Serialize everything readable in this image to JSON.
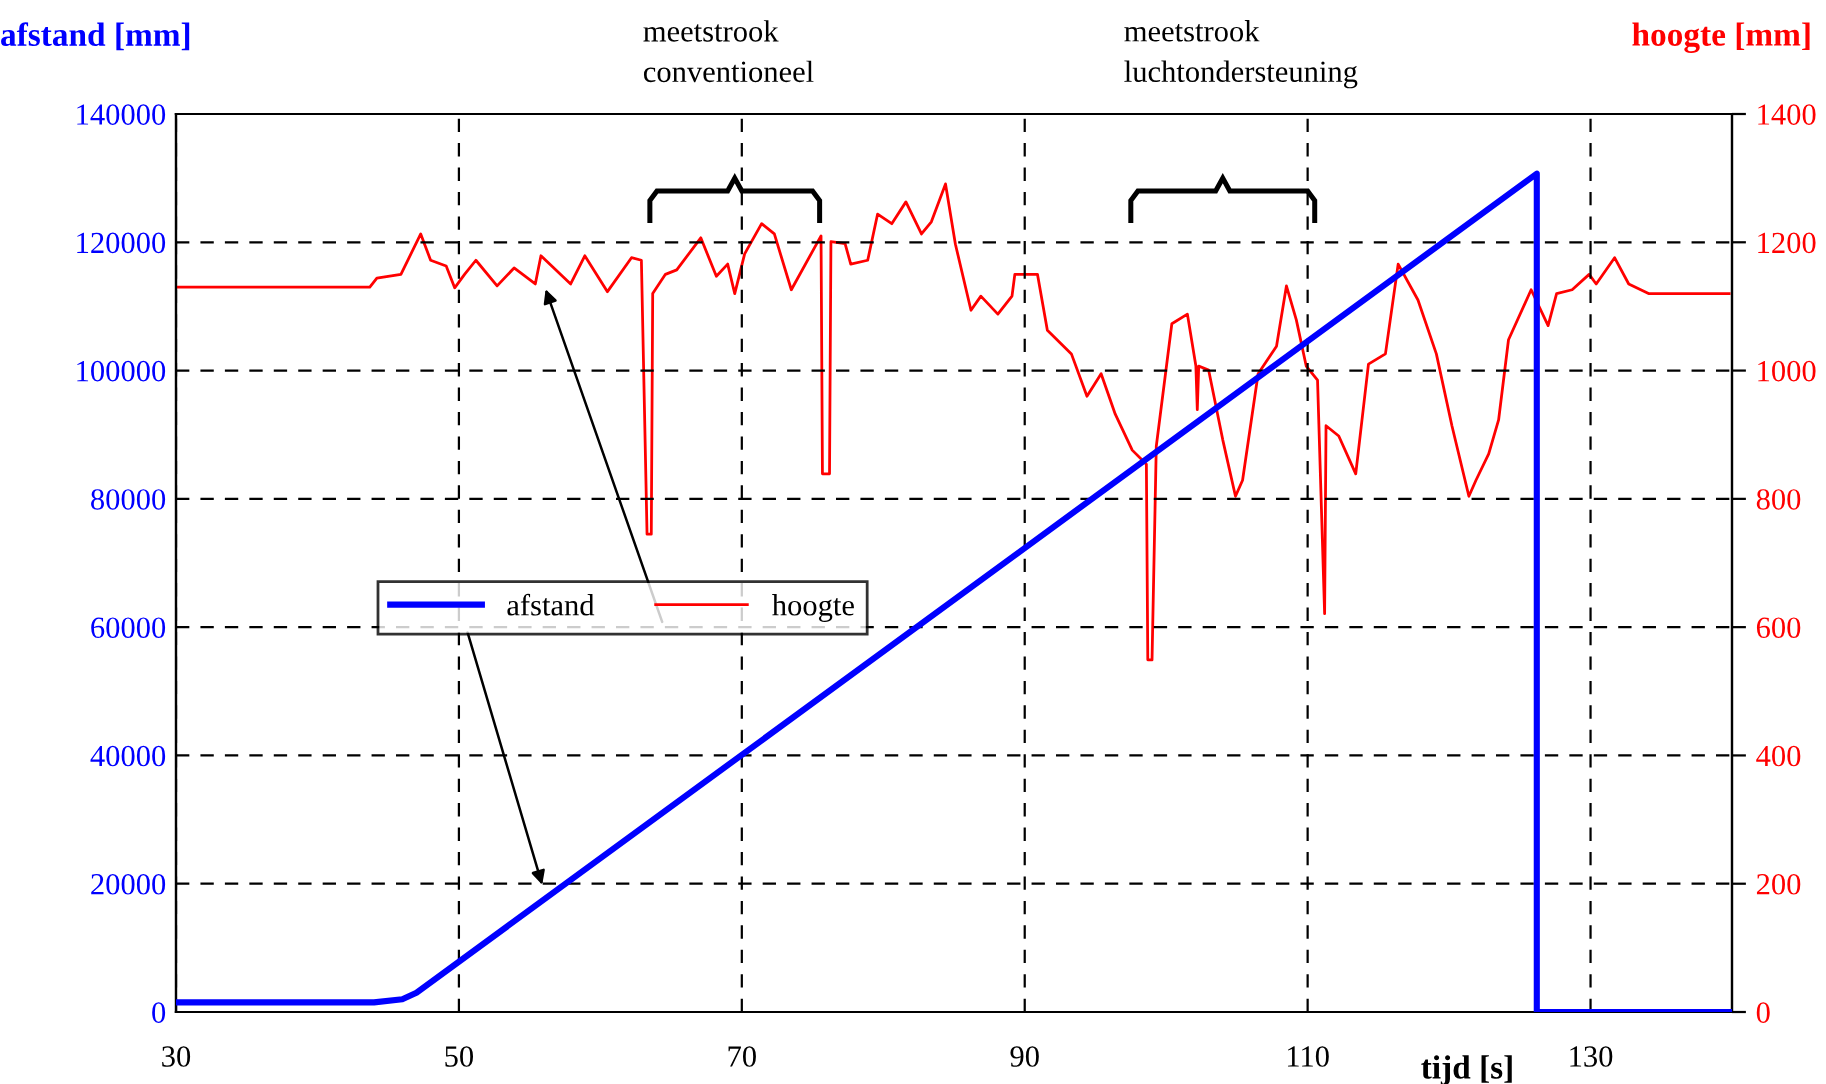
{
  "chart_data": {
    "type": "line",
    "xlabel": "tijd [s]",
    "ylabel": "afstand [mm]",
    "y2label": "hoogte [mm]",
    "xlim": [
      30,
      140
    ],
    "xticks": [
      30,
      50,
      70,
      90,
      110,
      130
    ],
    "ylim": [
      0,
      140000
    ],
    "yticks": [
      0,
      20000,
      40000,
      60000,
      80000,
      100000,
      120000,
      140000
    ],
    "y2lim": [
      0,
      1400
    ],
    "y2ticks": [
      0,
      200,
      400,
      600,
      800,
      1000,
      1200,
      1400
    ],
    "grid": true,
    "legend": "center left",
    "series": [
      {
        "name": "afstand",
        "color": "#0000ff",
        "x": [
          30,
          44,
          46,
          47,
          126.2,
          126.2,
          140
        ],
        "values": [
          1500,
          1500,
          2000,
          3000,
          130700,
          0,
          0
        ]
      },
      {
        "name": "hoogte",
        "color": "#ff0000",
        "axis": "y2",
        "x": [
          30,
          43.7,
          44.2,
          45.9,
          47.3,
          48,
          49.1,
          49.7,
          50.4,
          51.2,
          52.7,
          53.9,
          55.4,
          55.8,
          57.9,
          58.9,
          60.5,
          62.2,
          62.9,
          63.3,
          63.6,
          63.7,
          64.6,
          65.4,
          67.1,
          68.2,
          69,
          69.5,
          70.2,
          71.4,
          72.3,
          73.5,
          75.6,
          75.7,
          76.2,
          76.3,
          77.3,
          77.7,
          78.9,
          79.6,
          80.6,
          81.6,
          82.7,
          83.4,
          84.4,
          85.1,
          86.2,
          86.9,
          88.1,
          89.1,
          89.3,
          90.9,
          91.6,
          93.3,
          94.4,
          95.4,
          96.4,
          97.6,
          98.6,
          98.7,
          99,
          99.3,
          100.4,
          101.5,
          102.1,
          102.2,
          102.3,
          103,
          104,
          104.9,
          105.4,
          106.5,
          107.8,
          108.5,
          109.2,
          109.9,
          110.7,
          111.2,
          111.3,
          112.2,
          113.4,
          114.3,
          115.5,
          116.4,
          117.8,
          119.1,
          120.2,
          121.4,
          121.9,
          122.8,
          123.5,
          124.2,
          125.8,
          127,
          127.6,
          128.7,
          129.9,
          130.4,
          131.7,
          132.7,
          134.1,
          139.8
        ],
        "values": [
          1130,
          1130,
          1144,
          1150,
          1213,
          1172,
          1163,
          1129,
          1150,
          1172,
          1132,
          1160,
          1135,
          1179,
          1135,
          1179,
          1123,
          1176,
          1172,
          745,
          745,
          1120,
          1150,
          1157,
          1207,
          1147,
          1166,
          1120,
          1182,
          1229,
          1213,
          1126,
          1210,
          839,
          839,
          1201,
          1198,
          1166,
          1172,
          1244,
          1229,
          1263,
          1213,
          1232,
          1291,
          1197,
          1094,
          1116,
          1088,
          1116,
          1150,
          1150,
          1063,
          1026,
          960,
          995,
          932,
          876,
          854,
          549,
          549,
          882,
          1073,
          1088,
          1007,
          939,
          1007,
          1001,
          892,
          804,
          829,
          995,
          1038,
          1132,
          1079,
          1007,
          985,
          621,
          914,
          898,
          839,
          1010,
          1026,
          1166,
          1110,
          1026,
          914,
          804,
          829,
          870,
          923,
          1048,
          1126,
          1070,
          1120,
          1126,
          1150,
          1135,
          1176,
          1135,
          1120,
          1120
        ]
      }
    ],
    "annotations": [
      "meetstrook\nconventioneel",
      "meetstrook\nluchtondersteuning"
    ]
  }
}
